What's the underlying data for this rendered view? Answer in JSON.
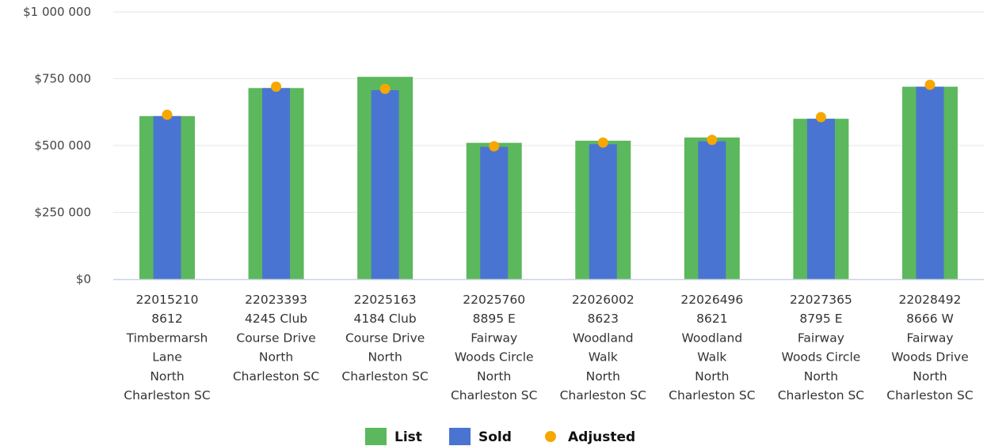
{
  "chart_data": {
    "type": "bar",
    "categories": [
      [
        "22015210",
        "8612",
        "Timbermarsh",
        "Lane",
        "North",
        "Charleston SC"
      ],
      [
        "22023393",
        "4245 Club",
        "Course Drive",
        "North",
        "Charleston SC"
      ],
      [
        "22025163",
        "4184 Club",
        "Course Drive",
        "North",
        "Charleston SC"
      ],
      [
        "22025760",
        "8895 E",
        "Fairway",
        "Woods Circle",
        "North",
        "Charleston SC"
      ],
      [
        "22026002",
        "8623",
        "Woodland",
        "Walk",
        "North",
        "Charleston SC"
      ],
      [
        "22026496",
        "8621",
        "Woodland",
        "Walk",
        "North",
        "Charleston SC"
      ],
      [
        "22027365",
        "8795 E",
        "Fairway",
        "Woods Circle",
        "North",
        "Charleston SC"
      ],
      [
        "22028492",
        "8666 W",
        "Fairway",
        "Woods Drive",
        "North",
        "Charleston SC"
      ]
    ],
    "series": [
      {
        "name": "List",
        "kind": "bar-wide",
        "color": "#5cb85c",
        "values": [
          610000,
          715000,
          757000,
          510000,
          518000,
          530000,
          600000,
          720000
        ]
      },
      {
        "name": "Sold",
        "kind": "bar-narrow",
        "color": "#4a74d1",
        "values": [
          610000,
          715000,
          707000,
          495000,
          505000,
          516000,
          600000,
          720000
        ]
      },
      {
        "name": "Adjusted",
        "kind": "point",
        "color": "#f6a700",
        "values": [
          615000,
          720000,
          712000,
          497000,
          511000,
          521000,
          606000,
          727000
        ]
      }
    ],
    "ylim": [
      0,
      1000000
    ],
    "yticks": [
      {
        "value": 0,
        "label": "$0"
      },
      {
        "value": 250000,
        "label": "$250 000"
      },
      {
        "value": 500000,
        "label": "$500 000"
      },
      {
        "value": 750000,
        "label": "$750 000"
      },
      {
        "value": 1000000,
        "label": "$1 000 000"
      }
    ],
    "grid": true,
    "legend": "bottom-center",
    "title": "",
    "xlabel": "",
    "ylabel": ""
  }
}
